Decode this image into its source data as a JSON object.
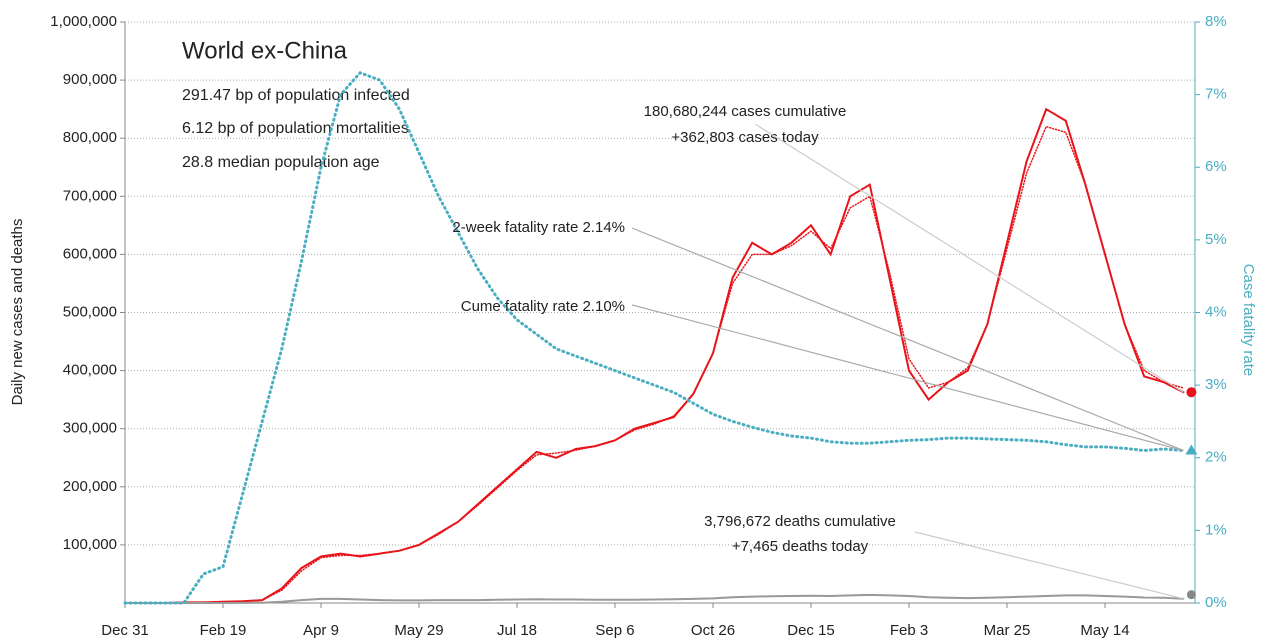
{
  "chart_data": {
    "type": "line",
    "title": "World ex-China",
    "subtitle": [
      "291.47 bp of population infected",
      "6.12 bp of population mortalities",
      "28.8 median population age"
    ],
    "ylabel": "Daily new cases and deaths",
    "y2label": "Case fatality rate",
    "annotations": [
      "180,680,244 cases cumulative",
      "+362,803 cases today",
      "2-week fatality rate 2.14%",
      "Cume fatality rate 2.10%",
      "3,796,672 deaths cumulative",
      "+7,465 deaths today"
    ],
    "x": [
      "Dec 31",
      "Jan 10",
      "Jan 20",
      "Jan 30",
      "Feb 9",
      "Feb 19",
      "Feb 29",
      "Mar 10",
      "Mar 20",
      "Mar 30",
      "Apr 9",
      "Apr 19",
      "Apr 29",
      "May 9",
      "May 19",
      "May 29",
      "Jun 8",
      "Jun 18",
      "Jun 28",
      "Jul 8",
      "Jul 18",
      "Jul 28",
      "Aug 7",
      "Aug 17",
      "Aug 27",
      "Sep 6",
      "Sep 16",
      "Sep 26",
      "Oct 6",
      "Oct 16",
      "Oct 26",
      "Nov 5",
      "Nov 15",
      "Nov 25",
      "Dec 5",
      "Dec 15",
      "Dec 25",
      "Jan 4",
      "Jan 14",
      "Jan 24",
      "Feb 3",
      "Feb 13",
      "Feb 23",
      "Mar 5",
      "Mar 15",
      "Mar 25",
      "Apr 4",
      "Apr 14",
      "Apr 24",
      "May 4",
      "May 14",
      "May 24",
      "Jun 3",
      "Jun 13",
      "Jun 23"
    ],
    "xticks": [
      "Dec 31",
      "Feb 19",
      "Apr 9",
      "May 29",
      "Jul 18",
      "Sep 6",
      "Oct 26",
      "Dec 15",
      "Feb 3",
      "Mar 25",
      "May 14"
    ],
    "ylim": [
      0,
      1000000
    ],
    "yticks": [
      {
        "value": 100000,
        "label": "100,000"
      },
      {
        "value": 200000,
        "label": "200,000"
      },
      {
        "value": 300000,
        "label": "300,000"
      },
      {
        "value": 400000,
        "label": "400,000"
      },
      {
        "value": 500000,
        "label": "500,000"
      },
      {
        "value": 600000,
        "label": "600,000"
      },
      {
        "value": 700000,
        "label": "700,000"
      },
      {
        "value": 800000,
        "label": "800,000"
      },
      {
        "value": 900000,
        "label": "900,000"
      },
      {
        "value": 1000000,
        "label": "1,000,000"
      }
    ],
    "y2lim": [
      0,
      8
    ],
    "y2ticks": [
      {
        "value": 0,
        "label": "0%"
      },
      {
        "value": 1,
        "label": "1%"
      },
      {
        "value": 2,
        "label": "2%"
      },
      {
        "value": 3,
        "label": "3%"
      },
      {
        "value": 4,
        "label": "4%"
      },
      {
        "value": 5,
        "label": "5%"
      },
      {
        "value": 6,
        "label": "6%"
      },
      {
        "value": 7,
        "label": "7%"
      },
      {
        "value": 8,
        "label": "8%"
      }
    ],
    "grid": true,
    "series": [
      {
        "color": "#e8141a",
        "style": "solid",
        "values": [
          0,
          0,
          0,
          1000,
          1000,
          2000,
          3000,
          5000,
          25000,
          60000,
          80000,
          85000,
          80000,
          85000,
          90000,
          100000,
          120000,
          140000,
          170000,
          200000,
          230000,
          260000,
          250000,
          265000,
          270000,
          280000,
          300000,
          310000,
          320000,
          360000,
          430000,
          560000,
          620000,
          600000,
          620000,
          650000,
          600000,
          700000,
          720000,
          560000,
          400000,
          350000,
          380000,
          400000,
          480000,
          620000,
          760000,
          850000,
          830000,
          720000,
          600000,
          480000,
          390000,
          380000,
          362803
        ]
      },
      {
        "color": "#e8141a",
        "style": "dotted",
        "values": [
          0,
          0,
          0,
          1000,
          1000,
          2000,
          3000,
          5000,
          22000,
          55000,
          78000,
          82000,
          82000,
          85000,
          90000,
          100000,
          118000,
          140000,
          168000,
          198000,
          228000,
          255000,
          258000,
          263000,
          270000,
          280000,
          298000,
          308000,
          322000,
          360000,
          430000,
          550000,
          600000,
          600000,
          615000,
          640000,
          610000,
          680000,
          700000,
          570000,
          420000,
          370000,
          380000,
          405000,
          480000,
          610000,
          740000,
          820000,
          810000,
          720000,
          600000,
          480000,
          400000,
          380000,
          370000
        ]
      },
      {
        "color": "#999999",
        "style": "solid",
        "values": [
          0,
          0,
          0,
          0,
          0,
          0,
          100,
          500,
          2000,
          5000,
          7000,
          7000,
          6000,
          5000,
          4500,
          4500,
          5000,
          5000,
          5000,
          5500,
          6000,
          6500,
          6000,
          6000,
          5500,
          5500,
          5500,
          6000,
          6500,
          7000,
          8000,
          10000,
          11000,
          11500,
          12000,
          12500,
          12000,
          13000,
          14000,
          13000,
          12000,
          10000,
          9000,
          8500,
          9000,
          10000,
          11000,
          12000,
          13000,
          13000,
          12000,
          11000,
          9500,
          9000,
          7465
        ]
      },
      {
        "color": "#4aaec0",
        "style": "dotted",
        "axis": "y2",
        "values": [
          0,
          0,
          0,
          0,
          0.4,
          0.5,
          1.5,
          2.5,
          3.5,
          4.7,
          6,
          7,
          7.3,
          7.2,
          6.8,
          6.2,
          5.6,
          5.1,
          4.6,
          4.2,
          3.9,
          3.7,
          3.5,
          3.4,
          3.3,
          3.2,
          3.1,
          3,
          2.9,
          2.75,
          2.6,
          2.5,
          2.42,
          2.35,
          2.3,
          2.27,
          2.22,
          2.2,
          2.2,
          2.22,
          2.24,
          2.25,
          2.27,
          2.27,
          2.26,
          2.25,
          2.24,
          2.22,
          2.18,
          2.15,
          2.15,
          2.13,
          2.1,
          2.12,
          2.1
        ]
      }
    ]
  }
}
